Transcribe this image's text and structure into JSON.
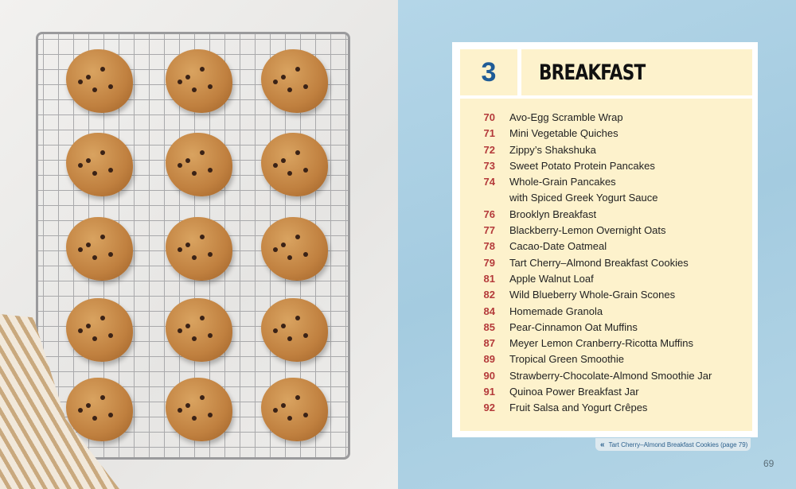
{
  "chapter": {
    "number": "3",
    "title": "BREAKFAST"
  },
  "recipes": [
    {
      "page": "70",
      "title": "Avo-Egg Scramble Wrap"
    },
    {
      "page": "71",
      "title": "Mini Vegetable Quiches"
    },
    {
      "page": "72",
      "title": "Zippy’s Shakshuka"
    },
    {
      "page": "73",
      "title": "Sweet Potato Protein Pancakes"
    },
    {
      "page": "74",
      "title": "Whole-Grain Pancakes"
    },
    {
      "page": "",
      "title": "with Spiced Greek Yogurt Sauce"
    },
    {
      "page": "76",
      "title": "Brooklyn Breakfast"
    },
    {
      "page": "77",
      "title": "Blackberry-Lemon Overnight Oats"
    },
    {
      "page": "78",
      "title": "Cacao-Date Oatmeal"
    },
    {
      "page": "79",
      "title": "Tart Cherry–Almond Breakfast Cookies"
    },
    {
      "page": "81",
      "title": "Apple Walnut Loaf"
    },
    {
      "page": "82",
      "title": "Wild Blueberry Whole-Grain Scones"
    },
    {
      "page": "84",
      "title": "Homemade Granola"
    },
    {
      "page": "85",
      "title": "Pear-Cinnamon Oat Muffins"
    },
    {
      "page": "87",
      "title": "Meyer Lemon Cranberry-Ricotta Muffins"
    },
    {
      "page": "89",
      "title": "Tropical Green Smoothie"
    },
    {
      "page": "90",
      "title": "Strawberry-Chocolate-Almond Smoothie Jar"
    },
    {
      "page": "91",
      "title": "Quinoa Power Breakfast Jar"
    },
    {
      "page": "92",
      "title": "Fruit Salsa and Yogurt Crêpes"
    }
  ],
  "caption": {
    "icon": "double-chevron-left-icon",
    "text": "Tart Cherry–Almond Breakfast Cookies (page 79)"
  },
  "page_number": "69",
  "colors": {
    "chapter_number": "#1f5c97",
    "page_numbers": "#b43a3a",
    "panel": "#fdf2cc",
    "background": "#a4cbe0"
  }
}
